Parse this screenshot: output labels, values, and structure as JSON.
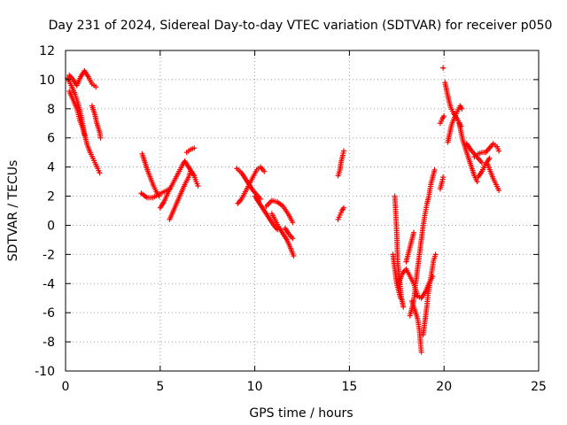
{
  "chart_data": {
    "type": "scatter",
    "title": "Day 231 of 2024, Sidereal Day-to-day VTEC variation (SDTVAR) for receiver p050",
    "xlabel": "GPS time / hours",
    "ylabel": "SDTVAR / TECUs",
    "xlim": [
      0,
      25
    ],
    "ylim": [
      -10,
      12
    ],
    "xticks": [
      0,
      5,
      10,
      15,
      20,
      25
    ],
    "yticks": [
      -10,
      -8,
      -6,
      -4,
      -2,
      0,
      2,
      4,
      6,
      8,
      10,
      12
    ],
    "grid": true,
    "marker": "plus",
    "color": "#ff0000",
    "tracks": [
      [
        [
          0.1,
          10.1
        ],
        [
          0.3,
          9.6
        ],
        [
          0.5,
          9.0
        ],
        [
          0.7,
          8.2
        ],
        [
          0.85,
          7.4
        ],
        [
          0.95,
          6.6
        ],
        [
          1.05,
          6.0
        ],
        [
          1.15,
          5.5
        ],
        [
          1.3,
          5.0
        ]
      ],
      [
        [
          0.2,
          9.2
        ],
        [
          0.4,
          8.6
        ],
        [
          0.6,
          8.0
        ],
        [
          0.75,
          7.2
        ],
        [
          0.9,
          6.7
        ],
        [
          1.0,
          6.2
        ]
      ],
      [
        [
          0.2,
          10.3
        ],
        [
          0.4,
          10.0
        ],
        [
          0.6,
          9.6
        ],
        [
          0.8,
          10.2
        ],
        [
          1.0,
          10.6
        ],
        [
          1.2,
          10.2
        ],
        [
          1.4,
          9.7
        ],
        [
          1.6,
          9.5
        ]
      ],
      [
        [
          1.4,
          8.2
        ],
        [
          1.55,
          7.6
        ],
        [
          1.65,
          7.0
        ],
        [
          1.8,
          6.4
        ],
        [
          1.85,
          6.0
        ]
      ],
      [
        [
          1.3,
          5.0
        ],
        [
          1.45,
          4.6
        ],
        [
          1.55,
          4.3
        ],
        [
          1.7,
          3.9
        ],
        [
          1.8,
          3.6
        ]
      ],
      [
        [
          4.05,
          4.9
        ],
        [
          4.2,
          4.3
        ],
        [
          4.35,
          3.7
        ],
        [
          4.5,
          3.2
        ],
        [
          4.65,
          2.7
        ],
        [
          4.8,
          2.3
        ],
        [
          4.95,
          2.0
        ]
      ],
      [
        [
          4.0,
          2.2
        ],
        [
          4.3,
          1.9
        ],
        [
          4.6,
          1.9
        ],
        [
          4.9,
          2.1
        ],
        [
          5.2,
          2.3
        ],
        [
          5.5,
          2.5
        ]
      ],
      [
        [
          5.0,
          1.2
        ],
        [
          5.2,
          1.6
        ],
        [
          5.4,
          2.2
        ],
        [
          5.6,
          2.7
        ],
        [
          5.8,
          3.2
        ],
        [
          6.0,
          3.7
        ],
        [
          6.2,
          4.2
        ],
        [
          6.3,
          4.4
        ]
      ],
      [
        [
          5.5,
          0.4
        ],
        [
          5.7,
          1.0
        ],
        [
          5.9,
          1.6
        ],
        [
          6.1,
          2.2
        ],
        [
          6.3,
          2.8
        ],
        [
          6.5,
          3.3
        ],
        [
          6.6,
          3.7
        ]
      ],
      [
        [
          6.3,
          4.4
        ],
        [
          6.45,
          4.1
        ],
        [
          6.6,
          3.8
        ],
        [
          6.8,
          3.4
        ],
        [
          6.9,
          3.0
        ],
        [
          7.0,
          2.7
        ]
      ],
      [
        [
          6.4,
          5.0
        ],
        [
          6.6,
          5.2
        ],
        [
          6.8,
          5.3
        ]
      ],
      [
        [
          9.05,
          3.9
        ],
        [
          9.3,
          3.6
        ],
        [
          9.5,
          3.2
        ],
        [
          9.7,
          2.8
        ],
        [
          9.9,
          2.4
        ],
        [
          10.1,
          2.1
        ],
        [
          10.3,
          1.8
        ]
      ],
      [
        [
          9.1,
          1.5
        ],
        [
          9.3,
          1.8
        ],
        [
          9.5,
          2.3
        ],
        [
          9.7,
          2.8
        ],
        [
          9.9,
          3.3
        ],
        [
          10.1,
          3.8
        ],
        [
          10.3,
          4.0
        ],
        [
          10.5,
          3.7
        ]
      ],
      [
        [
          10.0,
          2.0
        ],
        [
          10.2,
          1.6
        ],
        [
          10.4,
          1.2
        ],
        [
          10.6,
          0.8
        ],
        [
          10.8,
          0.4
        ],
        [
          11.0,
          0.0
        ],
        [
          11.2,
          -0.3
        ]
      ],
      [
        [
          10.9,
          0.8
        ],
        [
          11.1,
          0.3
        ],
        [
          11.3,
          -0.2
        ],
        [
          11.5,
          -0.6
        ],
        [
          11.7,
          -1.0
        ],
        [
          11.9,
          -1.6
        ],
        [
          12.05,
          -2.1
        ]
      ],
      [
        [
          10.6,
          1.3
        ],
        [
          10.9,
          1.7
        ],
        [
          11.2,
          1.6
        ],
        [
          11.5,
          1.3
        ],
        [
          11.8,
          0.7
        ],
        [
          12.0,
          0.2
        ]
      ],
      [
        [
          11.6,
          -0.2
        ],
        [
          11.8,
          -0.6
        ],
        [
          12.0,
          -0.9
        ]
      ],
      [
        [
          14.4,
          3.4
        ],
        [
          14.5,
          3.8
        ],
        [
          14.55,
          4.3
        ],
        [
          14.65,
          4.8
        ],
        [
          14.7,
          5.1
        ]
      ],
      [
        [
          14.4,
          0.4
        ],
        [
          14.5,
          0.7
        ],
        [
          14.6,
          1.0
        ],
        [
          14.7,
          1.2
        ]
      ],
      [
        [
          17.4,
          2.0
        ],
        [
          17.5,
          -0.5
        ],
        [
          17.55,
          -2.5
        ],
        [
          17.65,
          -3.8
        ],
        [
          17.75,
          -5.0
        ],
        [
          17.85,
          -5.6
        ]
      ],
      [
        [
          17.3,
          -2.0
        ],
        [
          17.4,
          -3.0
        ],
        [
          17.5,
          -4.0
        ],
        [
          17.6,
          -4.5
        ],
        [
          17.7,
          -5.0
        ]
      ],
      [
        [
          17.6,
          -4.0
        ],
        [
          17.8,
          -3.3
        ],
        [
          18.0,
          -3.0
        ],
        [
          18.2,
          -3.5
        ],
        [
          18.4,
          -4.0
        ],
        [
          18.6,
          -4.8
        ]
      ],
      [
        [
          18.0,
          -2.5
        ],
        [
          18.1,
          -2.0
        ],
        [
          18.2,
          -1.5
        ],
        [
          18.3,
          -1.0
        ],
        [
          18.4,
          -0.5
        ]
      ],
      [
        [
          18.3,
          -5.2
        ],
        [
          18.45,
          -5.8
        ],
        [
          18.6,
          -6.4
        ],
        [
          18.7,
          -7.2
        ],
        [
          18.75,
          -8.0
        ],
        [
          18.8,
          -8.7
        ]
      ],
      [
        [
          18.2,
          -6.2
        ],
        [
          18.4,
          -5.2
        ],
        [
          18.5,
          -4.0
        ],
        [
          18.6,
          -3.0
        ],
        [
          18.7,
          -2.0
        ],
        [
          18.8,
          -1.0
        ],
        [
          18.9,
          0.0
        ],
        [
          19.0,
          0.8
        ],
        [
          19.1,
          1.5
        ],
        [
          19.2,
          2.0
        ],
        [
          19.3,
          2.8
        ],
        [
          19.4,
          3.3
        ],
        [
          19.5,
          3.8
        ]
      ],
      [
        [
          18.9,
          -7.5
        ],
        [
          19.0,
          -6.5
        ],
        [
          19.1,
          -5.5
        ],
        [
          19.15,
          -4.8
        ],
        [
          19.25,
          -4.0
        ],
        [
          19.35,
          -3.2
        ],
        [
          19.45,
          -2.4
        ],
        [
          19.55,
          -2.0
        ]
      ],
      [
        [
          18.5,
          -4.8
        ],
        [
          18.8,
          -5.0
        ],
        [
          19.0,
          -4.6
        ],
        [
          19.2,
          -4.0
        ],
        [
          19.4,
          -3.5
        ]
      ],
      [
        [
          19.8,
          2.5
        ],
        [
          19.9,
          3.0
        ],
        [
          19.95,
          3.3
        ]
      ],
      [
        [
          19.8,
          7.0
        ],
        [
          19.9,
          7.3
        ],
        [
          20.0,
          7.5
        ]
      ],
      [
        [
          19.95,
          10.8
        ]
      ],
      [
        [
          20.05,
          9.8
        ],
        [
          20.15,
          9.2
        ],
        [
          20.25,
          8.6
        ],
        [
          20.35,
          8.1
        ],
        [
          20.5,
          7.7
        ],
        [
          20.7,
          7.3
        ],
        [
          20.9,
          6.8
        ]
      ],
      [
        [
          20.2,
          5.7
        ],
        [
          20.3,
          6.3
        ],
        [
          20.4,
          6.9
        ],
        [
          20.55,
          7.4
        ],
        [
          20.7,
          7.8
        ],
        [
          20.85,
          8.2
        ],
        [
          20.95,
          8.0
        ]
      ],
      [
        [
          20.8,
          7.0
        ],
        [
          20.9,
          6.4
        ],
        [
          21.0,
          5.8
        ],
        [
          21.15,
          5.2
        ],
        [
          21.3,
          4.6
        ],
        [
          21.45,
          4.0
        ],
        [
          21.6,
          3.4
        ],
        [
          21.75,
          3.0
        ]
      ],
      [
        [
          21.2,
          5.6
        ],
        [
          21.4,
          5.2
        ],
        [
          21.6,
          4.9
        ],
        [
          21.8,
          4.6
        ],
        [
          22.0,
          4.3
        ]
      ],
      [
        [
          21.6,
          4.7
        ],
        [
          21.8,
          4.9
        ],
        [
          22.0,
          5.0
        ],
        [
          22.2,
          5.0
        ],
        [
          22.4,
          5.3
        ],
        [
          22.6,
          5.6
        ],
        [
          22.8,
          5.4
        ],
        [
          22.9,
          5.1
        ]
      ],
      [
        [
          22.3,
          4.2
        ],
        [
          22.45,
          3.7
        ],
        [
          22.6,
          3.2
        ],
        [
          22.75,
          2.8
        ],
        [
          22.9,
          2.4
        ]
      ],
      [
        [
          21.8,
          3.3
        ],
        [
          22.0,
          3.7
        ],
        [
          22.2,
          4.2
        ],
        [
          22.4,
          4.6
        ]
      ]
    ]
  }
}
